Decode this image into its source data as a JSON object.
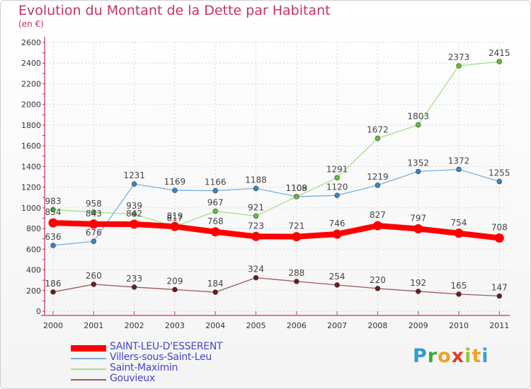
{
  "title": "Evolution du Montant de la Dette par Habitant",
  "subtitle": "(en €)",
  "brand": {
    "letters": [
      "P",
      "r",
      "o",
      "x",
      "i",
      "t",
      "i"
    ],
    "colors": [
      "#2d9bd6",
      "#3aaa35",
      "#f0a02a",
      "#e23a2a",
      "#8cc63e",
      "#f7a21c",
      "#3aa0d8"
    ]
  },
  "chart_data": {
    "type": "line",
    "x": [
      "2000",
      "2001",
      "2002",
      "2003",
      "2004",
      "2005",
      "2006",
      "2007",
      "2008",
      "2009",
      "2010",
      "2011"
    ],
    "ylim": [
      0,
      2600
    ],
    "yticks": [
      0,
      200,
      400,
      600,
      800,
      1000,
      1200,
      1400,
      1600,
      1800,
      2000,
      2200,
      2400,
      2600
    ],
    "grid": true,
    "legend_position": "bottom-left",
    "series": [
      {
        "name": "Gouvieux",
        "color": "#6b1c1c",
        "line_color": "#9b5a5a",
        "width": 1.3,
        "marker": 3.4,
        "values": [
          186,
          260,
          233,
          209,
          184,
          324,
          288,
          254,
          220,
          192,
          165,
          147
        ]
      },
      {
        "name": "Villers-sous-Saint-Leu",
        "color": "#3a86c6",
        "line_color": "#7ab0dc",
        "width": 1.3,
        "marker": 3.4,
        "values": [
          636,
          676,
          1231,
          1169,
          1166,
          1188,
          1109,
          1120,
          1219,
          1352,
          1372,
          1255
        ]
      },
      {
        "name": "Saint-Maximin",
        "color": "#5fc435",
        "line_color": "#a5e08a",
        "width": 1.3,
        "marker": 3.4,
        "values": [
          983,
          958,
          939,
          817,
          967,
          921,
          1108,
          1291,
          1672,
          1803,
          2373,
          2415
        ]
      },
      {
        "name": "SAINT-LEU-D'ESSERENT",
        "color": "#ff0000",
        "line_color": "#ff0000",
        "width": 8,
        "marker": 6.5,
        "values": [
          854,
          843,
          842,
          819,
          768,
          723,
          721,
          746,
          827,
          797,
          754,
          708
        ]
      }
    ],
    "legend": [
      "SAINT-LEU-D'ESSERENT",
      "Villers-sous-Saint-Leu",
      "Saint-Maximin",
      "Gouvieux"
    ]
  }
}
